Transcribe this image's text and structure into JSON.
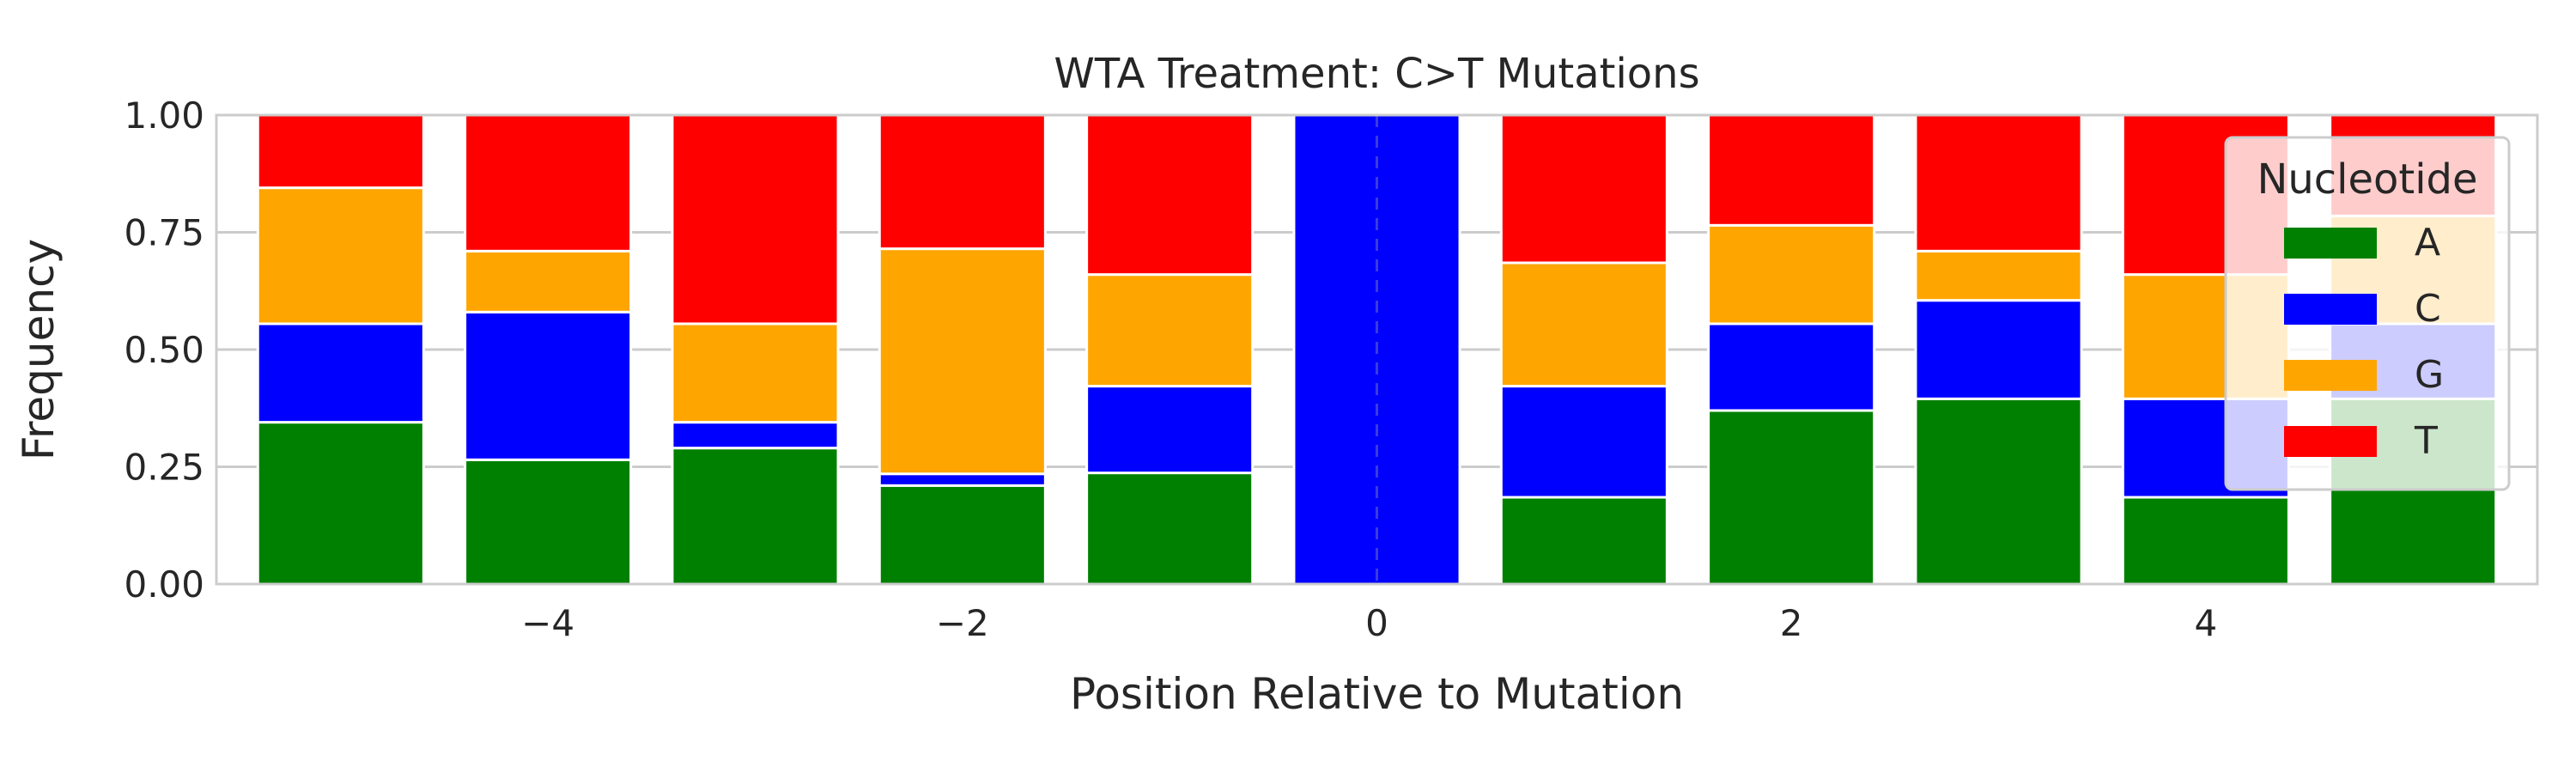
{
  "chart_data": {
    "type": "bar",
    "stacked": true,
    "title": "WTA Treatment: C>T Mutations",
    "xlabel": "Position Relative to Mutation",
    "ylabel": "Frequency",
    "x": [
      -5,
      -4,
      -3,
      -2,
      -1,
      0,
      1,
      2,
      3,
      4,
      5
    ],
    "xlim": [
      -5.6,
      5.6
    ],
    "ylim": [
      0,
      1
    ],
    "xticks": [
      -4,
      -2,
      0,
      2,
      4
    ],
    "xtick_labels": [
      "−4",
      "−2",
      "0",
      "2",
      "4"
    ],
    "yticks": [
      0,
      0.25,
      0.5,
      0.75,
      1.0
    ],
    "ytick_labels": [
      "0.00",
      "0.25",
      "0.50",
      "0.75",
      "1.00"
    ],
    "grid": true,
    "reference_line": {
      "x": 0,
      "style": "dashed"
    },
    "series": [
      {
        "name": "A",
        "color": "#008000",
        "values": [
          0.345,
          0.265,
          0.29,
          0.21,
          0.237,
          0.0,
          0.185,
          0.37,
          0.395,
          0.185,
          0.395
        ]
      },
      {
        "name": "C",
        "color": "#0000ff",
        "values": [
          0.21,
          0.315,
          0.055,
          0.025,
          0.185,
          1.0,
          0.237,
          0.185,
          0.21,
          0.21,
          0.16
        ]
      },
      {
        "name": "G",
        "color": "#ffa500",
        "values": [
          0.29,
          0.13,
          0.21,
          0.48,
          0.238,
          0.0,
          0.263,
          0.21,
          0.105,
          0.265,
          0.23
        ]
      },
      {
        "name": "T",
        "color": "#ff0000",
        "values": [
          0.155,
          0.29,
          0.445,
          0.285,
          0.34,
          0.0,
          0.315,
          0.235,
          0.29,
          0.34,
          0.215
        ]
      }
    ],
    "legend": {
      "title": "Nucleotide",
      "placement": "top-right"
    }
  }
}
